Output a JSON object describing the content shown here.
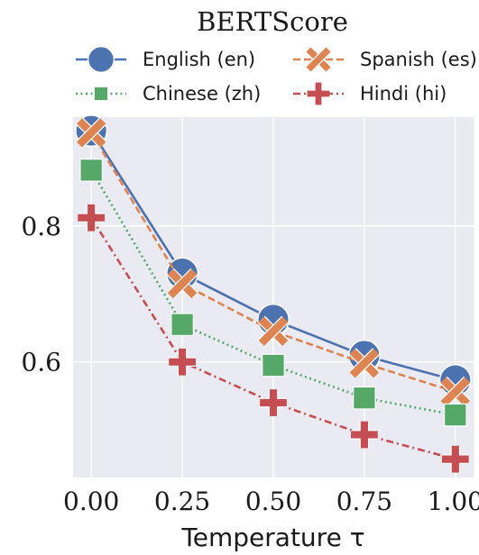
{
  "chart_data": {
    "type": "line",
    "title": "BERTScore",
    "xlabel": "Temperature τ",
    "ylabel": "",
    "x": [
      0.0,
      0.25,
      0.5,
      0.75,
      1.0
    ],
    "xticks": [
      "0.00",
      "0.25",
      "0.50",
      "0.75",
      "1.00"
    ],
    "yticks": [
      "0.6",
      "0.8"
    ],
    "ytick_values": [
      0.6,
      0.8
    ],
    "xlim": [
      -0.05,
      1.05
    ],
    "ylim": [
      0.43,
      0.96
    ],
    "grid": true,
    "legend_position": "top",
    "series": [
      {
        "name": "English (en)",
        "values": [
          0.94,
          0.73,
          0.662,
          0.609,
          0.573
        ],
        "color": "#4c72b0",
        "marker": "circle",
        "dash": "solid"
      },
      {
        "name": "Spanish (es)",
        "values": [
          0.937,
          0.715,
          0.645,
          0.598,
          0.556
        ],
        "color": "#dd8452",
        "marker": "x",
        "dash": "dashed"
      },
      {
        "name": "Chinese (zh)",
        "values": [
          0.882,
          0.655,
          0.595,
          0.547,
          0.522
        ],
        "color": "#55a868",
        "marker": "square",
        "dash": "dotted"
      },
      {
        "name": "Hindi (hi)",
        "values": [
          0.812,
          0.6,
          0.54,
          0.493,
          0.457
        ],
        "color": "#c44e52",
        "marker": "plus",
        "dash": "dashdot"
      }
    ]
  }
}
